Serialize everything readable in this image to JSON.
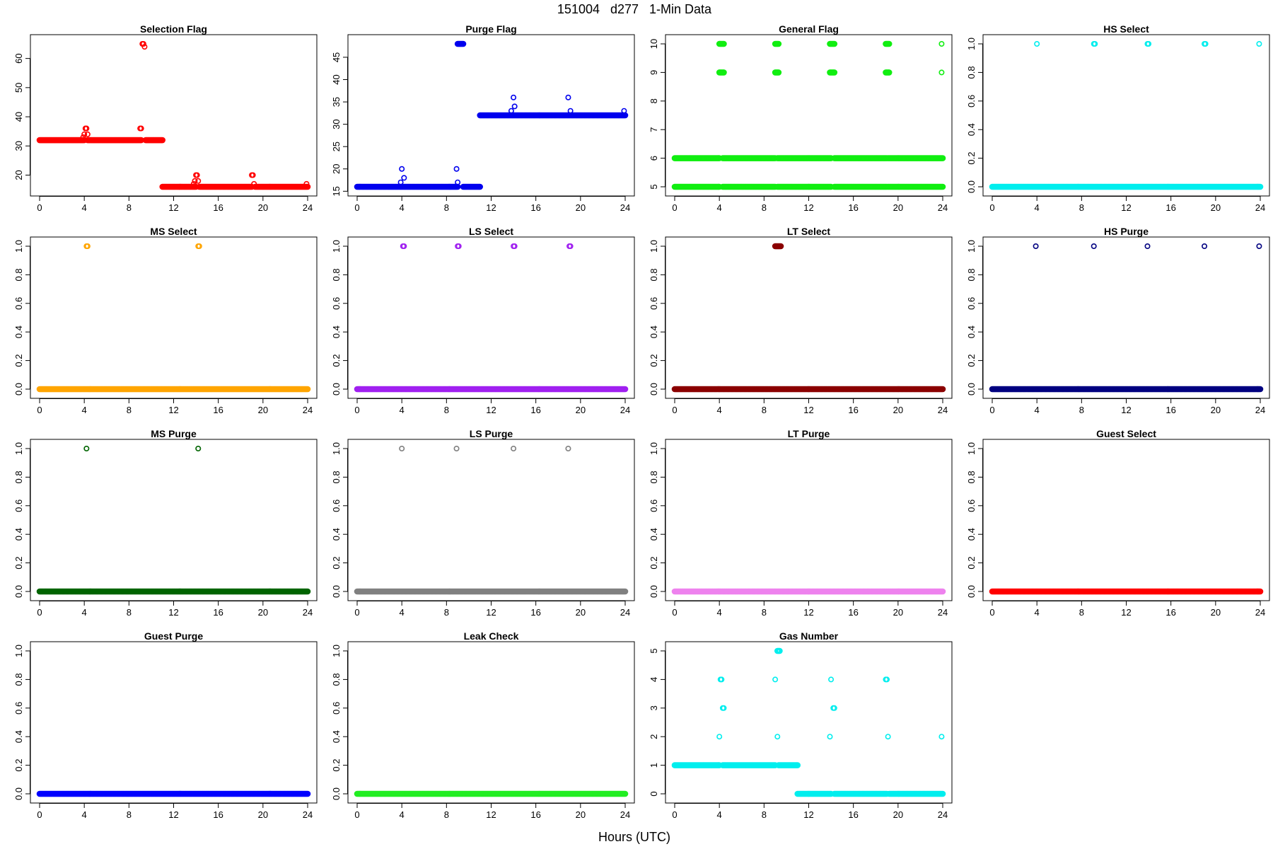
{
  "figure": {
    "title": "151004   d277   1-Min Data",
    "xlabel": "Hours (UTC)"
  },
  "chart_data": [
    {
      "type": "scatter",
      "title": "Selection Flag",
      "color": "#ff0000",
      "xlim": [
        0,
        24
      ],
      "ylim": [
        16,
        65
      ],
      "xticks": [
        0,
        4,
        8,
        12,
        16,
        20,
        24
      ],
      "yticks": [
        20,
        30,
        40,
        50,
        60
      ],
      "runs": [
        [
          0,
          4.0,
          32
        ],
        [
          4.3,
          9.1,
          32
        ],
        [
          9.5,
          11.0,
          32
        ],
        [
          11.0,
          14.0,
          16
        ],
        [
          14.3,
          19.0,
          16
        ],
        [
          19.3,
          24.0,
          16
        ]
      ],
      "points": [
        [
          3.9,
          33
        ],
        [
          4.0,
          34
        ],
        [
          4.1,
          36
        ],
        [
          4.2,
          36
        ],
        [
          4.3,
          34
        ],
        [
          9.0,
          36
        ],
        [
          9.1,
          36
        ],
        [
          9.2,
          65
        ],
        [
          9.3,
          65
        ],
        [
          9.4,
          64
        ],
        [
          13.8,
          17
        ],
        [
          13.9,
          18
        ],
        [
          14.0,
          20
        ],
        [
          14.1,
          20
        ],
        [
          14.2,
          18
        ],
        [
          19.0,
          20
        ],
        [
          19.1,
          20
        ],
        [
          19.2,
          17
        ],
        [
          23.9,
          17
        ]
      ]
    },
    {
      "type": "scatter",
      "title": "Purge Flag",
      "color": "#0000ee",
      "xlim": [
        0,
        24
      ],
      "ylim": [
        16,
        48
      ],
      "xticks": [
        0,
        4,
        8,
        12,
        16,
        20,
        24
      ],
      "yticks": [
        15,
        20,
        25,
        30,
        35,
        40,
        45
      ],
      "runs": [
        [
          0,
          9.0,
          16
        ],
        [
          9.5,
          11.0,
          16
        ],
        [
          11.0,
          24.0,
          32
        ],
        [
          9.0,
          9.5,
          48
        ]
      ],
      "points": [
        [
          3.9,
          17
        ],
        [
          4.0,
          20
        ],
        [
          4.2,
          18
        ],
        [
          8.9,
          20
        ],
        [
          9.0,
          17
        ],
        [
          13.8,
          33
        ],
        [
          14.0,
          36
        ],
        [
          14.1,
          34
        ],
        [
          18.9,
          36
        ],
        [
          19.1,
          33
        ],
        [
          23.9,
          33
        ]
      ]
    },
    {
      "type": "scatter",
      "title": "General Flag",
      "color": "#11ee11",
      "xlim": [
        0,
        24
      ],
      "ylim": [
        5,
        10
      ],
      "xticks": [
        0,
        4,
        8,
        12,
        16,
        20,
        24
      ],
      "yticks": [
        5,
        6,
        7,
        8,
        9,
        10
      ],
      "runs": [
        [
          0,
          4.0,
          6
        ],
        [
          0,
          4.0,
          5
        ],
        [
          4.3,
          9.0,
          6
        ],
        [
          4.3,
          9.0,
          5
        ],
        [
          9.2,
          14.0,
          6
        ],
        [
          9.2,
          14.0,
          5
        ],
        [
          14.3,
          19.0,
          6
        ],
        [
          14.3,
          19.0,
          5
        ],
        [
          19.1,
          24.0,
          6
        ],
        [
          19.1,
          24.0,
          5
        ],
        [
          4.0,
          4.4,
          10
        ],
        [
          4.0,
          4.4,
          9
        ],
        [
          9.0,
          9.3,
          10
        ],
        [
          9.0,
          9.3,
          9
        ],
        [
          13.9,
          14.3,
          10
        ],
        [
          13.9,
          14.3,
          9
        ],
        [
          18.9,
          19.2,
          10
        ],
        [
          18.9,
          19.2,
          9
        ]
      ],
      "points": [
        [
          23.9,
          10
        ],
        [
          23.9,
          9
        ]
      ]
    },
    {
      "type": "scatter",
      "title": "HS Select",
      "color": "#00eeee",
      "xlim": [
        0,
        24
      ],
      "ylim": [
        0,
        1
      ],
      "xticks": [
        0,
        4,
        8,
        12,
        16,
        20,
        24
      ],
      "yticks": [
        0.0,
        0.2,
        0.4,
        0.6,
        0.8,
        1.0
      ],
      "runs": [
        [
          0,
          24.0,
          0
        ]
      ],
      "points": [
        [
          4.0,
          1
        ],
        [
          9.1,
          1
        ],
        [
          9.2,
          1
        ],
        [
          13.9,
          1
        ],
        [
          14.0,
          1
        ],
        [
          19.0,
          1
        ],
        [
          19.1,
          1
        ],
        [
          23.9,
          1
        ]
      ]
    },
    {
      "type": "scatter",
      "title": "MS Select",
      "color": "#ffa500",
      "xlim": [
        0,
        24
      ],
      "ylim": [
        0,
        1
      ],
      "xticks": [
        0,
        4,
        8,
        12,
        16,
        20,
        24
      ],
      "yticks": [
        0.0,
        0.2,
        0.4,
        0.6,
        0.8,
        1.0
      ],
      "runs": [
        [
          0,
          24.0,
          0
        ]
      ],
      "points": [
        [
          4.2,
          1
        ],
        [
          4.3,
          1
        ],
        [
          14.2,
          1
        ],
        [
          14.3,
          1
        ]
      ]
    },
    {
      "type": "scatter",
      "title": "LS Select",
      "color": "#a020f0",
      "xlim": [
        0,
        24
      ],
      "ylim": [
        0,
        1
      ],
      "xticks": [
        0,
        4,
        8,
        12,
        16,
        20,
        24
      ],
      "yticks": [
        0.0,
        0.2,
        0.4,
        0.6,
        0.8,
        1.0
      ],
      "runs": [
        [
          0,
          24.0,
          0
        ]
      ],
      "points": [
        [
          4.1,
          1
        ],
        [
          4.2,
          1
        ],
        [
          9.0,
          1
        ],
        [
          9.1,
          1
        ],
        [
          14.0,
          1
        ],
        [
          14.1,
          1
        ],
        [
          19.0,
          1
        ],
        [
          19.1,
          1
        ]
      ]
    },
    {
      "type": "scatter",
      "title": "LT Select",
      "color": "#8b0000",
      "xlim": [
        0,
        24
      ],
      "ylim": [
        0,
        1
      ],
      "xticks": [
        0,
        4,
        8,
        12,
        16,
        20,
        24
      ],
      "yticks": [
        0.0,
        0.2,
        0.4,
        0.6,
        0.8,
        1.0
      ],
      "runs": [
        [
          0,
          24.0,
          0
        ],
        [
          9.0,
          9.5,
          1
        ]
      ],
      "points": []
    },
    {
      "type": "scatter",
      "title": "HS Purge",
      "color": "#000080",
      "xlim": [
        0,
        24
      ],
      "ylim": [
        0,
        1
      ],
      "xticks": [
        0,
        4,
        8,
        12,
        16,
        20,
        24
      ],
      "yticks": [
        0.0,
        0.2,
        0.4,
        0.6,
        0.8,
        1.0
      ],
      "runs": [
        [
          0,
          24.0,
          0
        ]
      ],
      "points": [
        [
          3.9,
          1
        ],
        [
          9.1,
          1
        ],
        [
          13.9,
          1
        ],
        [
          19.0,
          1
        ],
        [
          23.9,
          1
        ]
      ]
    },
    {
      "type": "scatter",
      "title": "MS Purge",
      "color": "#006400",
      "xlim": [
        0,
        24
      ],
      "ylim": [
        0,
        1
      ],
      "xticks": [
        0,
        4,
        8,
        12,
        16,
        20,
        24
      ],
      "yticks": [
        0.0,
        0.2,
        0.4,
        0.6,
        0.8,
        1.0
      ],
      "runs": [
        [
          0,
          24.0,
          0
        ]
      ],
      "points": [
        [
          4.2,
          1
        ],
        [
          14.2,
          1
        ]
      ]
    },
    {
      "type": "scatter",
      "title": "LS Purge",
      "color": "#808080",
      "xlim": [
        0,
        24
      ],
      "ylim": [
        0,
        1
      ],
      "xticks": [
        0,
        4,
        8,
        12,
        16,
        20,
        24
      ],
      "yticks": [
        0.0,
        0.2,
        0.4,
        0.6,
        0.8,
        1.0
      ],
      "runs": [
        [
          0,
          24.0,
          0
        ]
      ],
      "points": [
        [
          4.0,
          1
        ],
        [
          8.9,
          1
        ],
        [
          14.0,
          1
        ],
        [
          18.9,
          1
        ]
      ]
    },
    {
      "type": "scatter",
      "title": "LT Purge",
      "color": "#ee82ee",
      "xlim": [
        0,
        24
      ],
      "ylim": [
        0,
        1
      ],
      "xticks": [
        0,
        4,
        8,
        12,
        16,
        20,
        24
      ],
      "yticks": [
        0.0,
        0.2,
        0.4,
        0.6,
        0.8,
        1.0
      ],
      "runs": [
        [
          0,
          24.0,
          0
        ]
      ],
      "points": []
    },
    {
      "type": "scatter",
      "title": "Guest Select",
      "color": "#ff0000",
      "xlim": [
        0,
        24
      ],
      "ylim": [
        0,
        1
      ],
      "xticks": [
        0,
        4,
        8,
        12,
        16,
        20,
        24
      ],
      "yticks": [
        0.0,
        0.2,
        0.4,
        0.6,
        0.8,
        1.0
      ],
      "runs": [
        [
          0,
          24.0,
          0
        ]
      ],
      "points": []
    },
    {
      "type": "scatter",
      "title": "Guest Purge",
      "color": "#0000ff",
      "xlim": [
        0,
        24
      ],
      "ylim": [
        0,
        1
      ],
      "xticks": [
        0,
        4,
        8,
        12,
        16,
        20,
        24
      ],
      "yticks": [
        0.0,
        0.2,
        0.4,
        0.6,
        0.8,
        1.0
      ],
      "runs": [
        [
          0,
          24.0,
          0
        ]
      ],
      "points": []
    },
    {
      "type": "scatter",
      "title": "Leak Check",
      "color": "#22ee22",
      "xlim": [
        0,
        24
      ],
      "ylim": [
        0,
        1
      ],
      "xticks": [
        0,
        4,
        8,
        12,
        16,
        20,
        24
      ],
      "yticks": [
        0.0,
        0.2,
        0.4,
        0.6,
        0.8,
        1.0
      ],
      "runs": [
        [
          0,
          24.0,
          0
        ]
      ],
      "points": []
    },
    {
      "type": "scatter",
      "title": "Gas Number",
      "color": "#00eeee",
      "xlim": [
        0,
        24
      ],
      "ylim": [
        0,
        5
      ],
      "xticks": [
        0,
        4,
        8,
        12,
        16,
        20,
        24
      ],
      "yticks": [
        0,
        1,
        2,
        3,
        4,
        5
      ],
      "runs": [
        [
          0,
          4.0,
          1
        ],
        [
          4.3,
          9.0,
          1
        ],
        [
          9.3,
          11.0,
          1
        ],
        [
          11.0,
          14.0,
          0
        ],
        [
          14.3,
          19.0,
          0
        ],
        [
          19.2,
          24.0,
          0
        ],
        [
          9.2,
          9.4,
          5
        ]
      ],
      "points": [
        [
          4.0,
          2
        ],
        [
          4.1,
          4
        ],
        [
          4.2,
          4
        ],
        [
          4.3,
          3
        ],
        [
          4.4,
          3
        ],
        [
          9.0,
          4
        ],
        [
          9.2,
          2
        ],
        [
          13.9,
          2
        ],
        [
          14.0,
          4
        ],
        [
          14.2,
          3
        ],
        [
          14.3,
          3
        ],
        [
          18.9,
          4
        ],
        [
          19.0,
          4
        ],
        [
          19.1,
          2
        ],
        [
          23.9,
          2
        ]
      ]
    }
  ]
}
